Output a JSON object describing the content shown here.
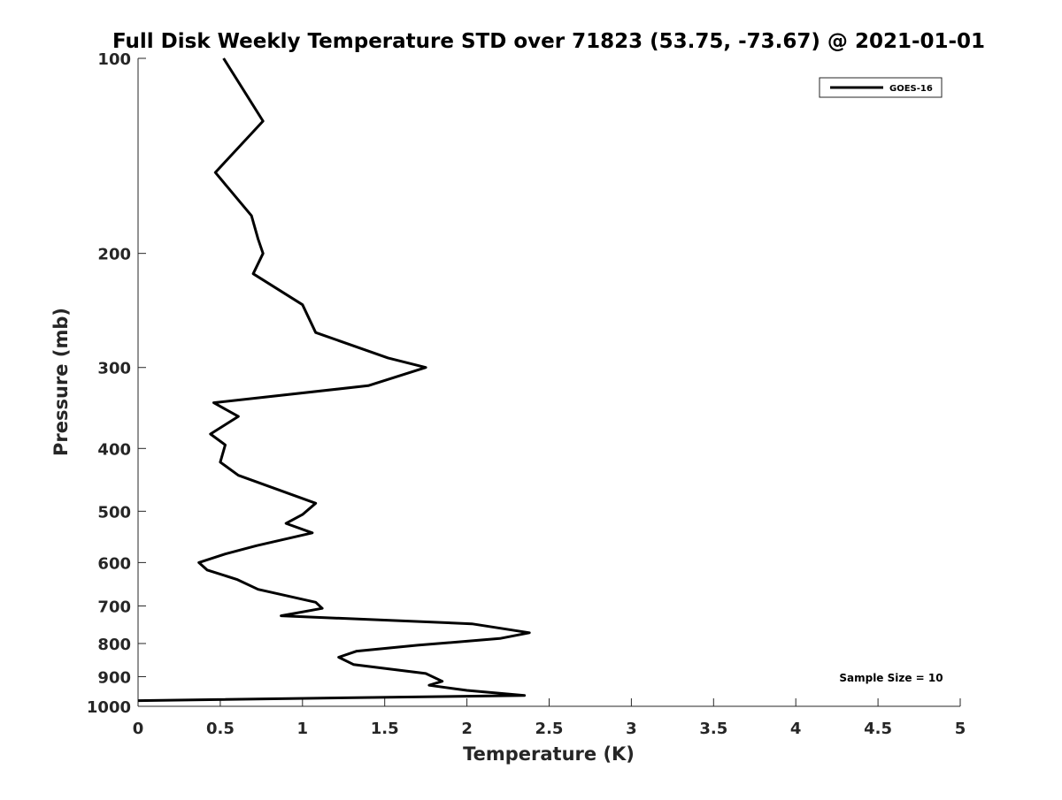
{
  "chart_data": {
    "type": "line",
    "title": "Full Disk Weekly Temperature STD over 71823 (53.75, -73.67) @ 2021-01-01",
    "xlabel": "Temperature (K)",
    "ylabel": "Pressure (mb)",
    "xlim": [
      0,
      5
    ],
    "ylim": [
      100,
      1000
    ],
    "y_scale": "log",
    "y_reversed": true,
    "grid": false,
    "legend_position": "top-right",
    "x_ticks": [
      "0",
      "0.5",
      "1",
      "1.5",
      "2",
      "2.5",
      "3",
      "3.5",
      "4",
      "4.5",
      "5"
    ],
    "y_ticks": [
      "100",
      "200",
      "300",
      "400",
      "500",
      "600",
      "700",
      "800",
      "900",
      "1000"
    ],
    "annotation": "Sample Size = 10",
    "series": [
      {
        "name": "GOES-16",
        "color": "#000000",
        "points": [
          [
            0.52,
            100
          ],
          [
            0.76,
            125
          ],
          [
            0.47,
            150
          ],
          [
            0.69,
            175
          ],
          [
            0.73,
            190
          ],
          [
            0.76,
            200
          ],
          [
            0.7,
            215
          ],
          [
            1.0,
            240
          ],
          [
            1.08,
            265
          ],
          [
            1.52,
            290
          ],
          [
            1.75,
            300
          ],
          [
            1.4,
            320
          ],
          [
            0.46,
            340
          ],
          [
            0.61,
            357
          ],
          [
            0.44,
            380
          ],
          [
            0.53,
            395
          ],
          [
            0.5,
            420
          ],
          [
            0.61,
            440
          ],
          [
            1.08,
            486
          ],
          [
            1.0,
            506
          ],
          [
            0.9,
            522
          ],
          [
            1.06,
            540
          ],
          [
            0.72,
            565
          ],
          [
            0.53,
            582
          ],
          [
            0.37,
            600
          ],
          [
            0.42,
            616
          ],
          [
            0.6,
            637
          ],
          [
            0.73,
            660
          ],
          [
            1.08,
            691
          ],
          [
            1.12,
            706
          ],
          [
            0.87,
            725
          ],
          [
            2.03,
            746
          ],
          [
            2.38,
            770
          ],
          [
            2.2,
            786
          ],
          [
            1.7,
            805
          ],
          [
            1.33,
            822
          ],
          [
            1.22,
            840
          ],
          [
            1.31,
            862
          ],
          [
            1.75,
            890
          ],
          [
            1.85,
            915
          ],
          [
            1.77,
            928
          ],
          [
            2.0,
            945
          ],
          [
            2.35,
            962
          ],
          [
            0.0,
            980
          ]
        ]
      }
    ]
  }
}
